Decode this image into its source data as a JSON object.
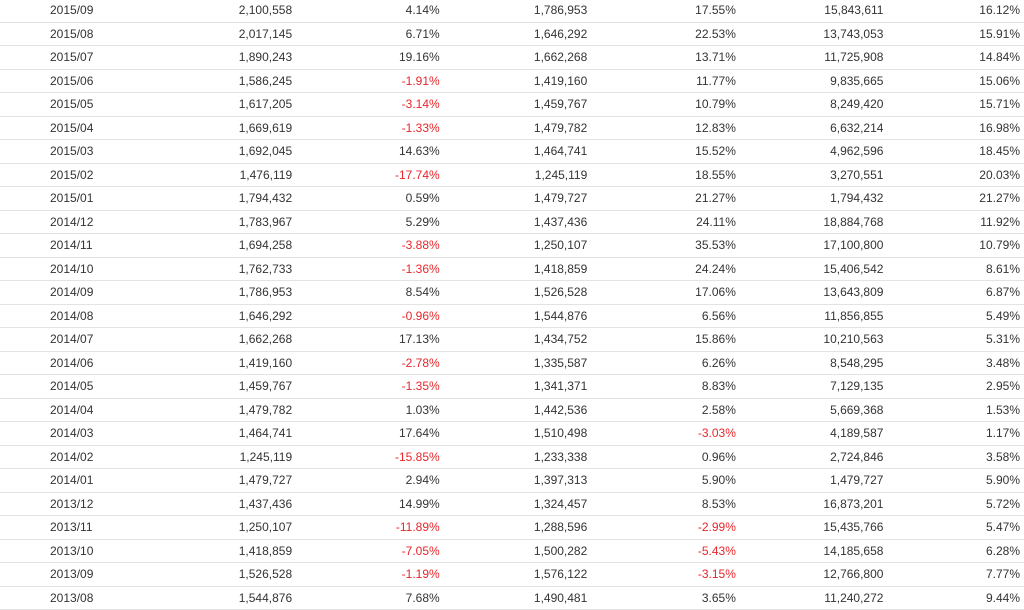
{
  "colors": {
    "negative": "#e8262a",
    "text": "#333333",
    "row_border": "#e3e3e3"
  },
  "table": {
    "rows": [
      [
        "2015/09",
        "2,100,558",
        "4.14%",
        "1,786,953",
        "17.55%",
        "15,843,611",
        "16.12%"
      ],
      [
        "2015/08",
        "2,017,145",
        "6.71%",
        "1,646,292",
        "22.53%",
        "13,743,053",
        "15.91%"
      ],
      [
        "2015/07",
        "1,890,243",
        "19.16%",
        "1,662,268",
        "13.71%",
        "11,725,908",
        "14.84%"
      ],
      [
        "2015/06",
        "1,586,245",
        "-1.91%",
        "1,419,160",
        "11.77%",
        "9,835,665",
        "15.06%"
      ],
      [
        "2015/05",
        "1,617,205",
        "-3.14%",
        "1,459,767",
        "10.79%",
        "8,249,420",
        "15.71%"
      ],
      [
        "2015/04",
        "1,669,619",
        "-1.33%",
        "1,479,782",
        "12.83%",
        "6,632,214",
        "16.98%"
      ],
      [
        "2015/03",
        "1,692,045",
        "14.63%",
        "1,464,741",
        "15.52%",
        "4,962,596",
        "18.45%"
      ],
      [
        "2015/02",
        "1,476,119",
        "-17.74%",
        "1,245,119",
        "18.55%",
        "3,270,551",
        "20.03%"
      ],
      [
        "2015/01",
        "1,794,432",
        "0.59%",
        "1,479,727",
        "21.27%",
        "1,794,432",
        "21.27%"
      ],
      [
        "2014/12",
        "1,783,967",
        "5.29%",
        "1,437,436",
        "24.11%",
        "18,884,768",
        "11.92%"
      ],
      [
        "2014/11",
        "1,694,258",
        "-3.88%",
        "1,250,107",
        "35.53%",
        "17,100,800",
        "10.79%"
      ],
      [
        "2014/10",
        "1,762,733",
        "-1.36%",
        "1,418,859",
        "24.24%",
        "15,406,542",
        "8.61%"
      ],
      [
        "2014/09",
        "1,786,953",
        "8.54%",
        "1,526,528",
        "17.06%",
        "13,643,809",
        "6.87%"
      ],
      [
        "2014/08",
        "1,646,292",
        "-0.96%",
        "1,544,876",
        "6.56%",
        "11,856,855",
        "5.49%"
      ],
      [
        "2014/07",
        "1,662,268",
        "17.13%",
        "1,434,752",
        "15.86%",
        "10,210,563",
        "5.31%"
      ],
      [
        "2014/06",
        "1,419,160",
        "-2.78%",
        "1,335,587",
        "6.26%",
        "8,548,295",
        "3.48%"
      ],
      [
        "2014/05",
        "1,459,767",
        "-1.35%",
        "1,341,371",
        "8.83%",
        "7,129,135",
        "2.95%"
      ],
      [
        "2014/04",
        "1,479,782",
        "1.03%",
        "1,442,536",
        "2.58%",
        "5,669,368",
        "1.53%"
      ],
      [
        "2014/03",
        "1,464,741",
        "17.64%",
        "1,510,498",
        "-3.03%",
        "4,189,587",
        "1.17%"
      ],
      [
        "2014/02",
        "1,245,119",
        "-15.85%",
        "1,233,338",
        "0.96%",
        "2,724,846",
        "3.58%"
      ],
      [
        "2014/01",
        "1,479,727",
        "2.94%",
        "1,397,313",
        "5.90%",
        "1,479,727",
        "5.90%"
      ],
      [
        "2013/12",
        "1,437,436",
        "14.99%",
        "1,324,457",
        "8.53%",
        "16,873,201",
        "5.72%"
      ],
      [
        "2013/11",
        "1,250,107",
        "-11.89%",
        "1,288,596",
        "-2.99%",
        "15,435,766",
        "5.47%"
      ],
      [
        "2013/10",
        "1,418,859",
        "-7.05%",
        "1,500,282",
        "-5.43%",
        "14,185,658",
        "6.28%"
      ],
      [
        "2013/09",
        "1,526,528",
        "-1.19%",
        "1,576,122",
        "-3.15%",
        "12,766,800",
        "7.77%"
      ],
      [
        "2013/08",
        "1,544,876",
        "7.68%",
        "1,490,481",
        "3.65%",
        "11,240,272",
        "9.44%"
      ]
    ]
  }
}
